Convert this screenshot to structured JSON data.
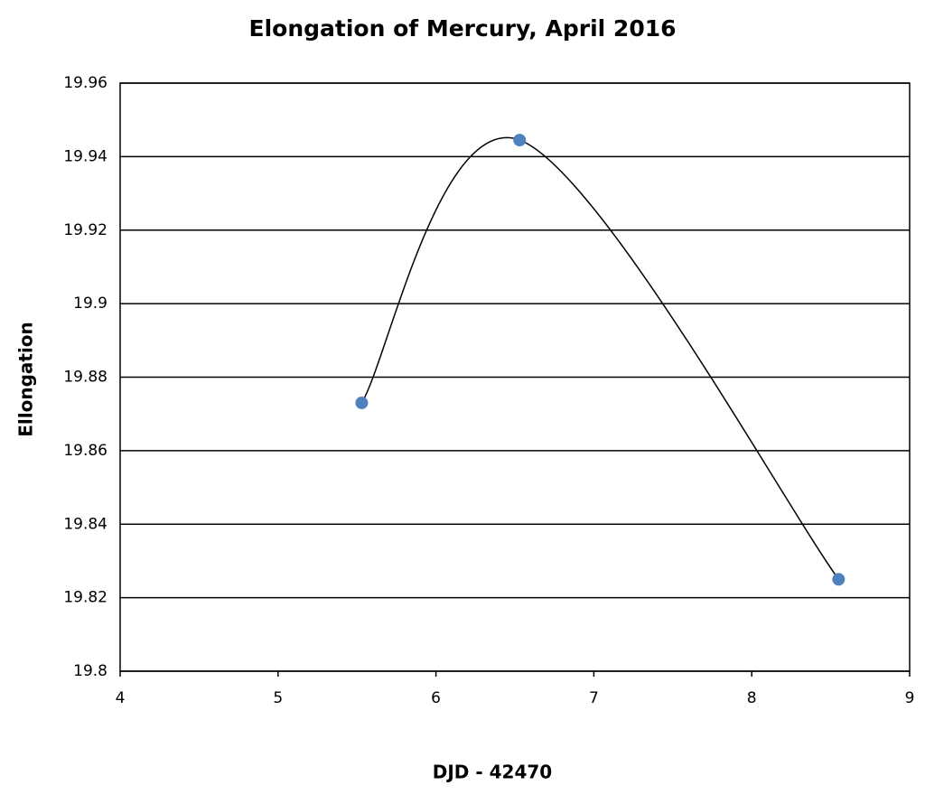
{
  "chart_data": {
    "type": "scatter",
    "title": "Elongation of Mercury, April 2016",
    "x_label": "DJD - 42470",
    "y_label": "Ellongation",
    "x": [
      5.53,
      6.53,
      8.55
    ],
    "values": [
      19.873,
      19.9445,
      19.825
    ],
    "color": "#4f81bd",
    "line_color": "#000000",
    "smooth": true,
    "xlim": [
      4,
      9
    ],
    "xticks": [
      4,
      5,
      6,
      7,
      8,
      9
    ],
    "ylim": [
      19.8,
      19.96
    ],
    "yticks": [
      19.8,
      19.82,
      19.84,
      19.86,
      19.88,
      19.9,
      19.92,
      19.94,
      19.96
    ],
    "grid": true
  }
}
